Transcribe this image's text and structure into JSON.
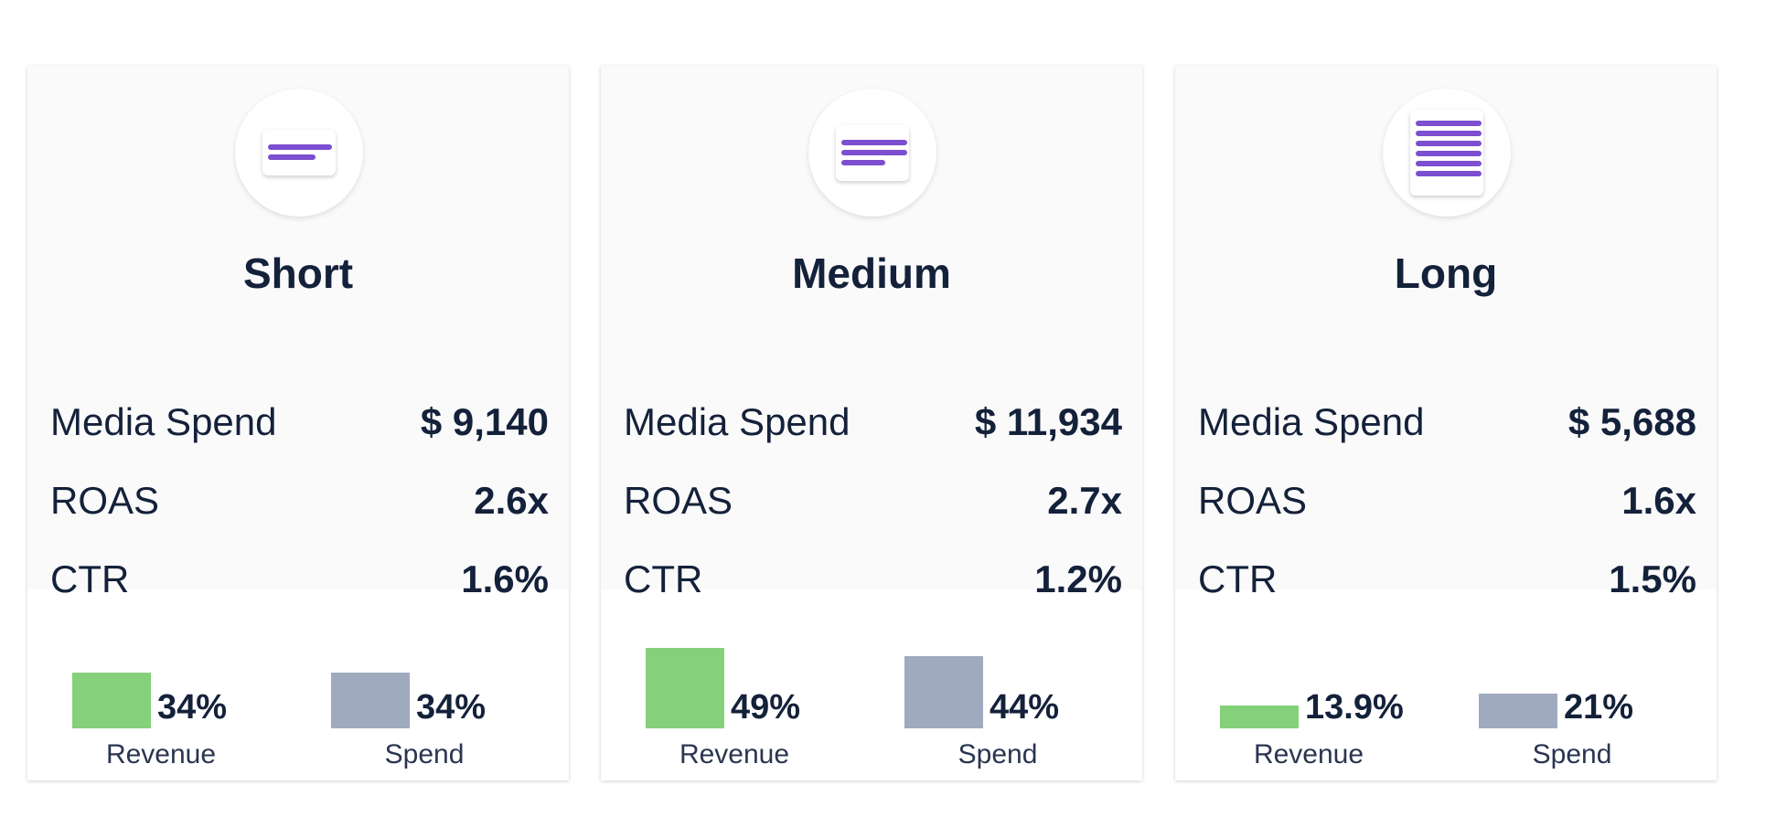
{
  "cards": [
    {
      "title": "Short",
      "metrics": [
        {
          "label": "Media Spend",
          "value": "$ 9,140"
        },
        {
          "label": "ROAS",
          "value": "2.6x"
        },
        {
          "label": "CTR",
          "value": "1.6%"
        }
      ],
      "bars": [
        {
          "name": "Revenue",
          "value": 34,
          "value_label": "34%",
          "color": "#85d07a"
        },
        {
          "name": "Spend",
          "value": 34,
          "value_label": "34%",
          "color": "#a0aabe"
        }
      ]
    },
    {
      "title": "Medium",
      "metrics": [
        {
          "label": "Media Spend",
          "value": "$ 11,934"
        },
        {
          "label": "ROAS",
          "value": "2.7x"
        },
        {
          "label": "CTR",
          "value": "1.2%"
        }
      ],
      "bars": [
        {
          "name": "Revenue",
          "value": 49,
          "value_label": "49%",
          "color": "#85d07a"
        },
        {
          "name": "Spend",
          "value": 44,
          "value_label": "44%",
          "color": "#a0aabe"
        }
      ]
    },
    {
      "title": "Long",
      "metrics": [
        {
          "label": "Media Spend",
          "value": "$ 5,688"
        },
        {
          "label": "ROAS",
          "value": "1.6x"
        },
        {
          "label": "CTR",
          "value": "1.5%"
        }
      ],
      "bars": [
        {
          "name": "Revenue",
          "value": 13.9,
          "value_label": "13.9%",
          "color": "#85d07a"
        },
        {
          "name": "Spend",
          "value": 21,
          "value_label": "21%",
          "color": "#a0aabe"
        }
      ]
    }
  ]
}
